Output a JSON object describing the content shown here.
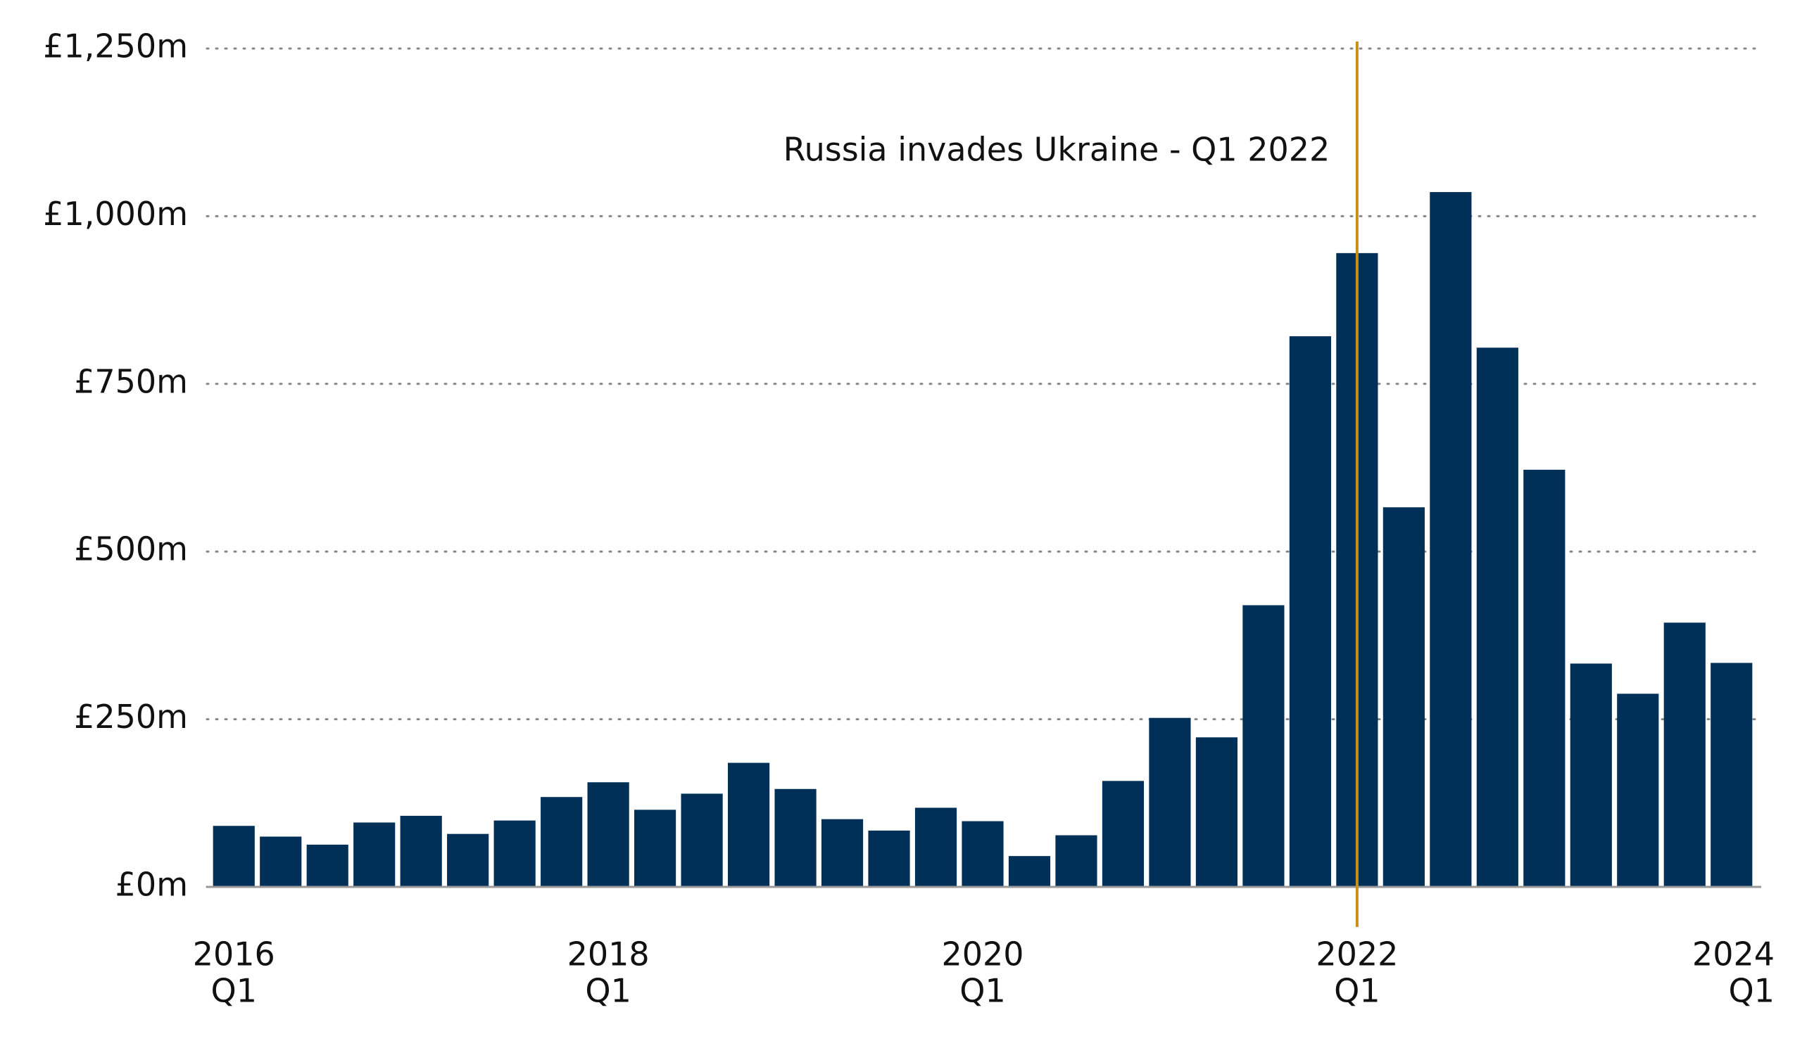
{
  "chart_data": {
    "type": "bar",
    "categories": [
      [
        "2016",
        "Q1"
      ],
      null,
      null,
      null,
      null,
      null,
      null,
      null,
      [
        "2018",
        "Q1"
      ],
      null,
      null,
      null,
      null,
      null,
      null,
      null,
      [
        "2020",
        "Q1"
      ],
      null,
      null,
      null,
      null,
      null,
      null,
      null,
      [
        "2022",
        "Q1"
      ],
      null,
      null,
      null,
      null,
      null,
      null,
      null,
      [
        "2024",
        "Q1"
      ]
    ],
    "values": [
      91,
      75,
      63,
      96,
      106,
      79,
      99,
      134,
      156,
      115,
      139,
      185,
      146,
      101,
      84,
      118,
      98,
      46,
      77,
      158,
      252,
      223,
      420,
      821,
      945,
      566,
      1036,
      804,
      622,
      333,
      288,
      394,
      334
    ],
    "color": "#003057",
    "ylim": [
      0,
      1250
    ],
    "yticks": [
      {
        "value": 0,
        "label": "£0m"
      },
      {
        "value": 250,
        "label": "£250m"
      },
      {
        "value": 500,
        "label": "£500m"
      },
      {
        "value": 750,
        "label": "£750m"
      },
      {
        "value": 1000,
        "label": "£1,000m"
      },
      {
        "value": 1250,
        "label": "£1,250m"
      }
    ],
    "grid": true,
    "annotation": {
      "text": "Russia invades Ukraine - Q1 2022",
      "color": "#c8901a"
    }
  }
}
